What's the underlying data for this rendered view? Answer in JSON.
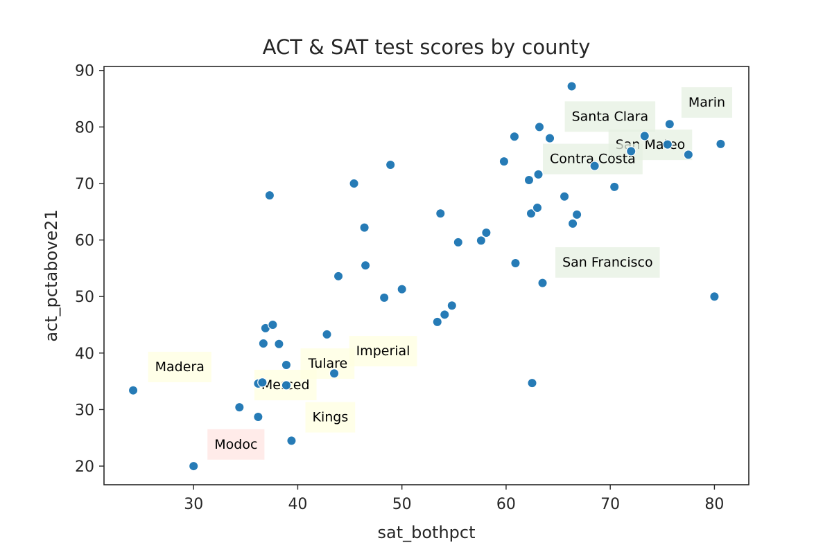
{
  "chart_data": {
    "type": "scatter",
    "title": "ACT & SAT test scores by county",
    "xlabel": "sat_bothpct",
    "ylabel": "act_pctabove21",
    "xlim": [
      21.4,
      83.3
    ],
    "ylim": [
      16.7,
      90.7
    ],
    "xticks": [
      30,
      40,
      50,
      60,
      70,
      80
    ],
    "yticks": [
      20,
      30,
      40,
      50,
      60,
      70,
      80,
      90
    ],
    "grid": false,
    "point_color": "#1f77b4",
    "points": [
      {
        "x": 24.2,
        "y": 33.4
      },
      {
        "x": 30.0,
        "y": 20.0
      },
      {
        "x": 34.4,
        "y": 30.4
      },
      {
        "x": 36.2,
        "y": 28.7
      },
      {
        "x": 36.2,
        "y": 34.6
      },
      {
        "x": 36.6,
        "y": 34.8
      },
      {
        "x": 36.7,
        "y": 41.7
      },
      {
        "x": 36.9,
        "y": 44.4
      },
      {
        "x": 37.3,
        "y": 67.9
      },
      {
        "x": 37.6,
        "y": 45.0
      },
      {
        "x": 38.2,
        "y": 41.6
      },
      {
        "x": 38.9,
        "y": 34.3
      },
      {
        "x": 38.9,
        "y": 37.9
      },
      {
        "x": 39.4,
        "y": 24.5
      },
      {
        "x": 42.8,
        "y": 43.3
      },
      {
        "x": 43.5,
        "y": 36.4
      },
      {
        "x": 43.9,
        "y": 53.6
      },
      {
        "x": 45.4,
        "y": 70.0
      },
      {
        "x": 46.4,
        "y": 62.2
      },
      {
        "x": 46.5,
        "y": 55.5
      },
      {
        "x": 48.3,
        "y": 49.8
      },
      {
        "x": 48.9,
        "y": 73.3
      },
      {
        "x": 50.0,
        "y": 51.3
      },
      {
        "x": 53.4,
        "y": 45.5
      },
      {
        "x": 53.7,
        "y": 64.7
      },
      {
        "x": 54.1,
        "y": 46.8
      },
      {
        "x": 54.8,
        "y": 48.4
      },
      {
        "x": 55.4,
        "y": 59.6
      },
      {
        "x": 57.6,
        "y": 59.9
      },
      {
        "x": 58.1,
        "y": 61.3
      },
      {
        "x": 59.8,
        "y": 73.9
      },
      {
        "x": 60.8,
        "y": 78.3
      },
      {
        "x": 60.9,
        "y": 55.9
      },
      {
        "x": 62.2,
        "y": 70.6
      },
      {
        "x": 62.4,
        "y": 64.7
      },
      {
        "x": 62.5,
        "y": 34.7
      },
      {
        "x": 63.0,
        "y": 65.7
      },
      {
        "x": 63.1,
        "y": 71.6
      },
      {
        "x": 63.2,
        "y": 80.0
      },
      {
        "x": 63.5,
        "y": 52.4
      },
      {
        "x": 64.2,
        "y": 78.0
      },
      {
        "x": 65.6,
        "y": 67.7
      },
      {
        "x": 66.3,
        "y": 87.2
      },
      {
        "x": 66.4,
        "y": 62.9
      },
      {
        "x": 66.8,
        "y": 64.5
      },
      {
        "x": 68.5,
        "y": 73.1
      },
      {
        "x": 70.4,
        "y": 69.4
      },
      {
        "x": 72.0,
        "y": 75.7
      },
      {
        "x": 73.3,
        "y": 78.4
      },
      {
        "x": 75.5,
        "y": 76.9
      },
      {
        "x": 75.7,
        "y": 80.5
      },
      {
        "x": 77.5,
        "y": 75.1
      },
      {
        "x": 80.0,
        "y": 50.0
      },
      {
        "x": 80.6,
        "y": 77.0
      }
    ],
    "annotations": [
      {
        "text": "Marin",
        "x": 77.5,
        "y": 83.6,
        "bg": "#e5f0e1"
      },
      {
        "text": "Santa Clara",
        "x": 66.3,
        "y": 81.1,
        "bg": "#e5f0e1"
      },
      {
        "text": "San Mateo",
        "x": 70.5,
        "y": 76.1,
        "bg": "#e5f0e1"
      },
      {
        "text": "Contra Costa",
        "x": 64.2,
        "y": 73.6,
        "bg": "#e5f0e1"
      },
      {
        "text": "San Francisco",
        "x": 65.4,
        "y": 55.3,
        "bg": "#e5f0e1"
      },
      {
        "text": "Imperial",
        "x": 45.6,
        "y": 39.6,
        "bg": "#ffffe0"
      },
      {
        "text": "Tulare",
        "x": 41.0,
        "y": 37.4,
        "bg": "#ffffe0"
      },
      {
        "text": "Madera",
        "x": 26.3,
        "y": 36.8,
        "bg": "#ffffe0"
      },
      {
        "text": "Merced",
        "x": 36.5,
        "y": 33.6,
        "bg": "#ffffe0"
      },
      {
        "text": "Kings",
        "x": 41.4,
        "y": 27.9,
        "bg": "#ffffe0"
      },
      {
        "text": "Modoc",
        "x": 32.0,
        "y": 23.1,
        "bg": "#ffe4e1"
      }
    ]
  }
}
